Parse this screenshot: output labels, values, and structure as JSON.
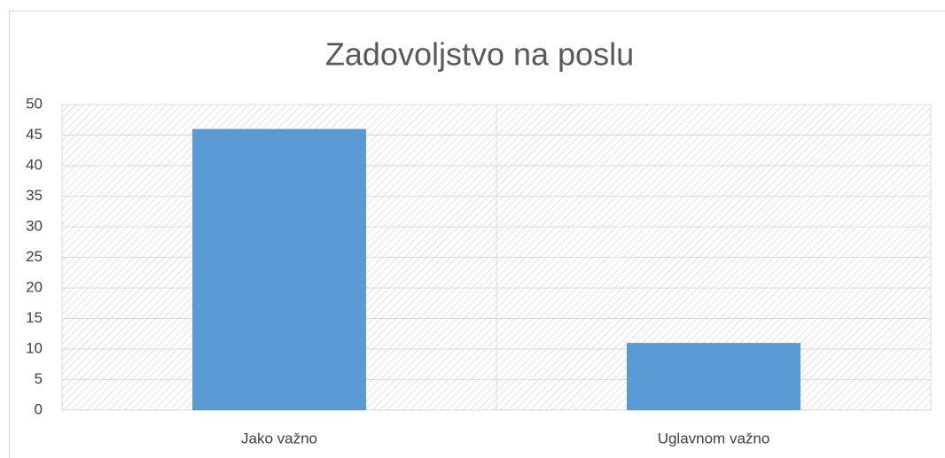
{
  "chart_data": {
    "type": "bar",
    "title": "Zadovoljstvo na poslu",
    "categories": [
      "Jako važno",
      "Uglavnom važno"
    ],
    "values": [
      46,
      11
    ],
    "color": "#5b9bd5",
    "ylim": [
      0,
      50
    ],
    "yticks": [
      0,
      5,
      10,
      15,
      20,
      25,
      30,
      35,
      40,
      45,
      50
    ],
    "grid": true
  }
}
